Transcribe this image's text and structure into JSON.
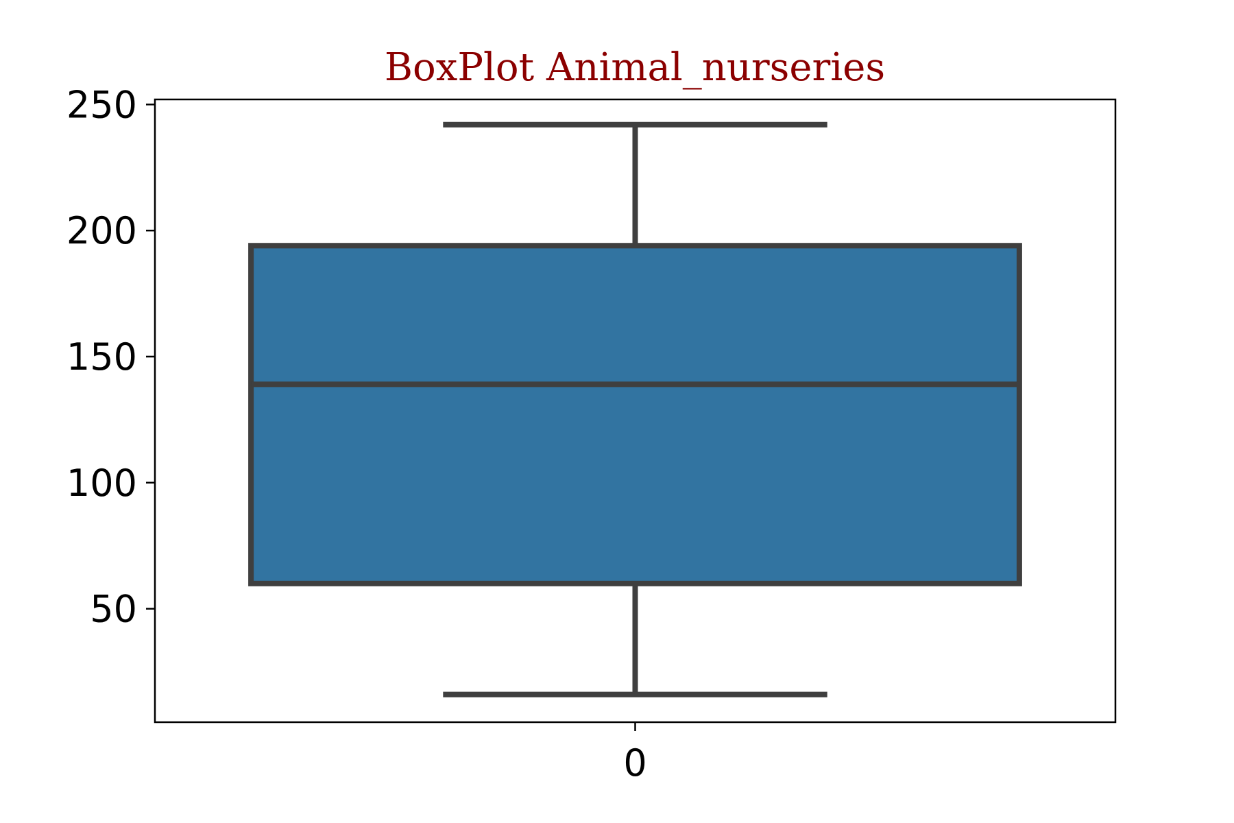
{
  "colors": {
    "title": "#8b0000",
    "box_fill": "#3274a1",
    "box_stroke": "#3f3f3f",
    "axis": "#000000"
  },
  "chart_data": {
    "type": "box",
    "title": "BoxPlot Animal_nurseries",
    "xlabel": "",
    "ylabel": "",
    "categories": [
      "0"
    ],
    "boxes": [
      {
        "category": "0",
        "whisker_low": 16,
        "q1": 60,
        "median": 139,
        "q3": 194,
        "whisker_high": 242
      }
    ],
    "ylim": [
      5,
      252
    ],
    "yticks": [
      50,
      100,
      150,
      200,
      250
    ],
    "grid": false,
    "legend": "none"
  }
}
